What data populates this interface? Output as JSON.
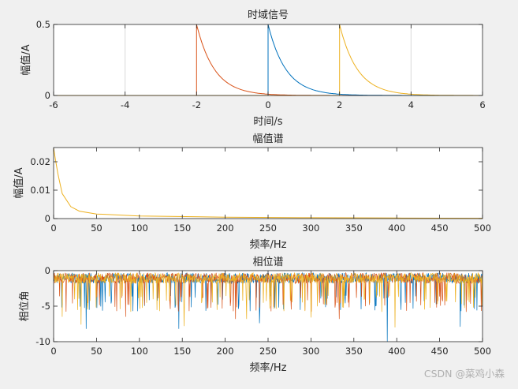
{
  "watermark": "CSDN @菜鸡小森",
  "colors": {
    "blue": "#0072BD",
    "orange": "#D95319",
    "yellow": "#EDB120",
    "axis": "#262626",
    "grid": "#d9d9d9",
    "figure_bg": "#f0f0f0",
    "axes_bg": "#ffffff"
  },
  "chart_data": [
    {
      "type": "line",
      "title": "时域信号",
      "xlabel": "时间/s",
      "ylabel": "幅值/A",
      "xlim": [
        -6,
        6
      ],
      "ylim": [
        0,
        0.5
      ],
      "xticks": [
        "-6",
        "-4",
        "-2",
        "0",
        "2",
        "4",
        "6"
      ],
      "yticks": [
        "0",
        "0.5"
      ],
      "vertical_gridlines_at": [
        -4,
        4
      ],
      "series": [
        {
          "color": "orange",
          "shape": "exponential decay",
          "start": -2,
          "peak": 0.5,
          "tau": 0.5
        },
        {
          "color": "blue",
          "shape": "exponential decay",
          "start": 0,
          "peak": 0.5,
          "tau": 0.5
        },
        {
          "color": "yellow",
          "shape": "exponential decay",
          "start": 2,
          "peak": 0.5,
          "tau": 0.5
        }
      ]
    },
    {
      "type": "line",
      "title": "幅值谱",
      "xlabel": "频率/Hz",
      "ylabel": "幅值/A",
      "xlim": [
        0,
        500
      ],
      "ylim": [
        0,
        0.025
      ],
      "xticks": [
        "0",
        "50",
        "100",
        "150",
        "200",
        "250",
        "300",
        "350",
        "400",
        "450",
        "500"
      ],
      "yticks": [
        "0",
        "0.01",
        "0.02"
      ],
      "series": [
        {
          "color": "yellow",
          "shape": "decay",
          "x": [
            0,
            2,
            5,
            10,
            20,
            30,
            50,
            100,
            200,
            300,
            400,
            500
          ],
          "y": [
            0.0248,
            0.021,
            0.0158,
            0.0088,
            0.0042,
            0.0026,
            0.0016,
            0.0009,
            0.0005,
            0.0003,
            0.0002,
            0.0001
          ]
        }
      ]
    },
    {
      "type": "line",
      "title": "相位谱",
      "xlabel": "频率/Hz",
      "ylabel": "相位角",
      "xlim": [
        0,
        500
      ],
      "ylim": [
        -10,
        0
      ],
      "xticks": [
        "0",
        "50",
        "100",
        "150",
        "200",
        "250",
        "300",
        "350",
        "400",
        "450",
        "500"
      ],
      "yticks": [
        "0",
        "-5",
        "-10"
      ],
      "series": [
        {
          "color": "blue",
          "shape": "noisy phase",
          "baseline": [
            -1.8,
            -3.3
          ],
          "deep_spikes": [
            [
              38,
              -8.2
            ],
            [
              146,
              -8.2
            ],
            [
              240,
              -7.4
            ],
            [
              389,
              -10
            ],
            [
              474,
              -7.9
            ]
          ]
        },
        {
          "color": "orange",
          "shape": "noisy phase",
          "baseline": [
            -1.8,
            -3.3
          ],
          "deep_spikes": [
            [
              84,
              -6.5
            ],
            [
              212,
              -6.8
            ],
            [
              333,
              -6.8
            ]
          ]
        },
        {
          "color": "yellow",
          "shape": "noisy phase",
          "baseline": [
            -1.8,
            -3.3
          ],
          "deep_spikes": [
            [
              10,
              -6.5
            ],
            [
              32,
              -7.6
            ],
            [
              152,
              -7.8
            ],
            [
              225,
              -6.8
            ],
            [
              300,
              -6.6
            ],
            [
              398,
              -8.0
            ]
          ]
        }
      ]
    }
  ]
}
